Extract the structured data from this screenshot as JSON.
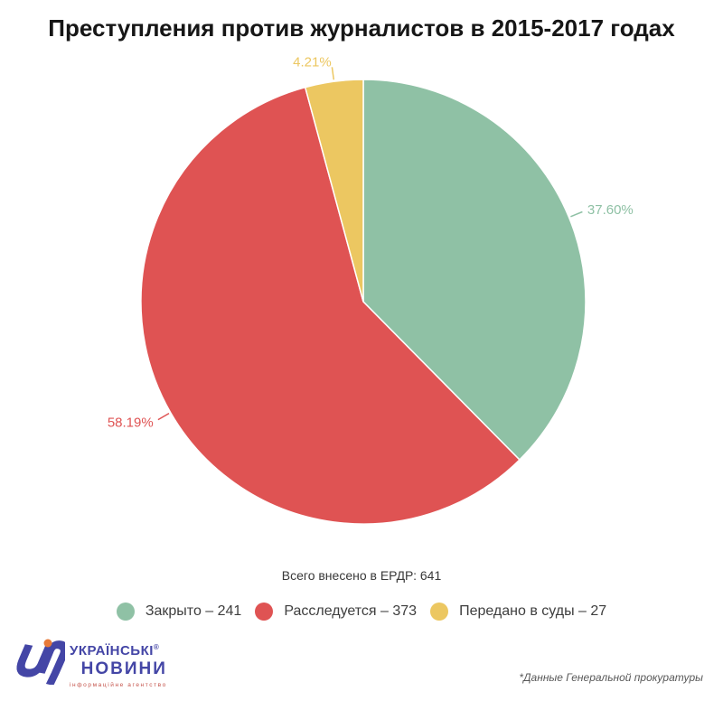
{
  "chart_data": {
    "type": "pie",
    "title": "Преступления против журналистов в 2015-2017 годах",
    "total": 641,
    "total_label": "Всего внесено в ЕРДР: 641",
    "legend_position": "bottom",
    "direction": "clockwise",
    "start_angle_deg": 0,
    "slices": [
      {
        "label": "Закрыто",
        "value": 241,
        "pct": 37.6,
        "pct_label": "37.60%",
        "color": "#8fc1a5",
        "legend_label": "Закрыто – 241"
      },
      {
        "label": "Расследуется",
        "value": 373,
        "pct": 58.19,
        "pct_label": "58.19%",
        "color": "#df5353",
        "legend_label": "Расследуется – 373"
      },
      {
        "label": "Передано в суды",
        "value": 27,
        "pct": 4.21,
        "pct_label": "4.21%",
        "color": "#ecc761",
        "legend_label": "Передано в суды – 27"
      }
    ]
  },
  "footer": {
    "source_note": "*Данные Генеральной прокуратуры",
    "logo": {
      "glyph": "un-monogram",
      "line1": "УКРАЇНСЬКІ",
      "registered_mark": "®",
      "line2": "НОВИНИ",
      "tagline": "інформаційне агентство",
      "brand_color": "#4446a6",
      "dot_color": "#e87a38"
    }
  }
}
